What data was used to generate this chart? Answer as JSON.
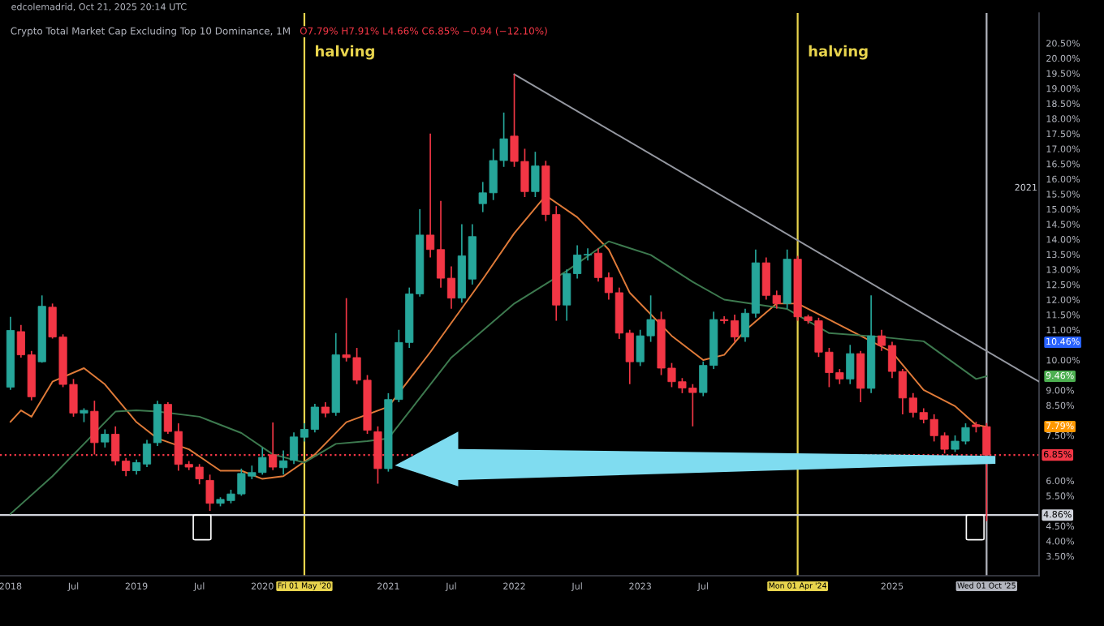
{
  "chart_data": {
    "type": "candlestick",
    "title": "Crypto Total Market Cap Excluding Top 10 Dominance, 1M",
    "subtitle": "O7.79% H7.91% L4.66% C6.85% −0.94 (−12.10%)",
    "x": [
      "2018-01",
      "2018-02",
      "2018-03",
      "2018-04",
      "2018-05",
      "2018-06",
      "2018-07",
      "2018-08",
      "2018-09",
      "2018-10",
      "2018-11",
      "2018-12",
      "2019-01",
      "2019-02",
      "2019-03",
      "2019-04",
      "2019-05",
      "2019-06",
      "2019-07",
      "2019-08",
      "2019-09",
      "2019-10",
      "2019-11",
      "2019-12",
      "2020-01",
      "2020-02",
      "2020-03",
      "2020-04",
      "2020-05",
      "2020-06",
      "2020-07",
      "2020-08",
      "2020-09",
      "2020-10",
      "2020-11",
      "2020-12",
      "2021-01",
      "2021-02",
      "2021-03",
      "2021-04",
      "2021-05",
      "2021-06",
      "2021-07",
      "2021-08",
      "2021-09",
      "2021-10",
      "2021-11",
      "2021-12",
      "2022-01",
      "2022-02",
      "2022-03",
      "2022-04",
      "2022-05",
      "2022-06",
      "2022-07",
      "2022-08",
      "2022-09",
      "2022-10",
      "2022-11",
      "2022-12",
      "2023-01",
      "2023-02",
      "2023-03",
      "2023-04",
      "2023-05",
      "2023-06",
      "2023-07",
      "2023-08",
      "2023-09",
      "2023-10",
      "2023-11",
      "2023-12",
      "2024-01",
      "2024-02",
      "2024-03",
      "2024-04",
      "2024-05",
      "2024-06",
      "2024-07",
      "2024-08",
      "2024-09",
      "2024-10",
      "2024-11",
      "2024-12",
      "2025-01",
      "2025-02",
      "2025-03",
      "2025-04",
      "2025-05",
      "2025-06",
      "2025-07",
      "2025-08",
      "2025-09",
      "2025-10"
    ],
    "ohlc": [
      [
        9.1,
        11.43,
        9.01,
        10.98
      ],
      [
        10.94,
        11.16,
        10.08,
        10.17
      ],
      [
        10.17,
        10.3,
        8.66,
        8.78
      ],
      [
        9.94,
        12.14,
        9.91,
        11.78
      ],
      [
        11.75,
        11.87,
        10.71,
        10.76
      ],
      [
        10.76,
        10.85,
        9.1,
        9.19
      ],
      [
        9.19,
        9.37,
        8.12,
        8.24
      ],
      [
        8.24,
        8.4,
        7.94,
        8.33
      ],
      [
        8.3,
        8.65,
        6.87,
        7.26
      ],
      [
        7.28,
        7.7,
        7.1,
        7.54
      ],
      [
        7.54,
        7.8,
        6.51,
        6.65
      ],
      [
        6.65,
        6.75,
        6.15,
        6.33
      ],
      [
        6.33,
        6.7,
        6.2,
        6.6
      ],
      [
        6.55,
        7.35,
        6.45,
        7.22
      ],
      [
        7.26,
        8.65,
        7.15,
        8.53
      ],
      [
        8.53,
        8.6,
        7.55,
        7.63
      ],
      [
        7.63,
        7.9,
        6.33,
        6.54
      ],
      [
        6.54,
        6.65,
        6.35,
        6.45
      ],
      [
        6.45,
        6.55,
        5.88,
        6.06
      ],
      [
        6.01,
        6.2,
        5.0,
        5.25
      ],
      [
        5.25,
        5.45,
        5.15,
        5.38
      ],
      [
        5.34,
        5.7,
        5.25,
        5.56
      ],
      [
        5.56,
        6.4,
        5.5,
        6.24
      ],
      [
        6.15,
        6.5,
        6.05,
        6.27
      ],
      [
        6.27,
        7.1,
        6.2,
        6.77
      ],
      [
        6.86,
        7.93,
        6.35,
        6.45
      ],
      [
        6.43,
        7.0,
        6.2,
        6.66
      ],
      [
        6.68,
        7.6,
        6.55,
        7.45
      ],
      [
        7.44,
        7.9,
        7.3,
        7.7
      ],
      [
        7.7,
        8.55,
        7.6,
        8.44
      ],
      [
        8.44,
        8.6,
        8.1,
        8.24
      ],
      [
        8.26,
        10.89,
        8.15,
        10.17
      ],
      [
        10.17,
        12.05,
        9.95,
        10.08
      ],
      [
        10.08,
        10.4,
        9.2,
        9.33
      ],
      [
        9.33,
        9.5,
        7.55,
        7.67
      ],
      [
        7.62,
        7.8,
        5.9,
        6.4
      ],
      [
        6.4,
        8.9,
        6.3,
        8.69
      ],
      [
        8.69,
        11.0,
        8.6,
        10.58
      ],
      [
        10.58,
        12.4,
        10.4,
        12.19
      ],
      [
        12.19,
        15.0,
        12.1,
        14.14
      ],
      [
        14.14,
        17.5,
        13.4,
        13.66
      ],
      [
        13.66,
        15.27,
        12.4,
        12.71
      ],
      [
        12.71,
        13.1,
        11.7,
        12.05
      ],
      [
        12.05,
        14.5,
        11.9,
        13.45
      ],
      [
        12.68,
        14.5,
        12.5,
        14.09
      ],
      [
        15.18,
        15.9,
        14.9,
        15.54
      ],
      [
        15.54,
        17.0,
        15.3,
        16.61
      ],
      [
        16.61,
        18.2,
        16.4,
        17.33
      ],
      [
        17.42,
        19.47,
        16.4,
        16.58
      ],
      [
        16.58,
        17.0,
        15.4,
        15.58
      ],
      [
        15.58,
        16.9,
        15.4,
        16.43
      ],
      [
        16.43,
        16.6,
        14.6,
        14.82
      ],
      [
        14.82,
        15.1,
        11.3,
        11.82
      ],
      [
        11.82,
        13.0,
        11.3,
        12.86
      ],
      [
        12.86,
        13.8,
        12.7,
        13.48
      ],
      [
        13.48,
        13.7,
        13.3,
        13.5
      ],
      [
        13.54,
        13.7,
        12.6,
        12.73
      ],
      [
        12.73,
        12.9,
        12.0,
        12.23
      ],
      [
        12.23,
        12.4,
        10.7,
        10.89
      ],
      [
        10.89,
        11.0,
        9.2,
        9.94
      ],
      [
        9.94,
        11.0,
        9.8,
        10.8
      ],
      [
        10.8,
        12.14,
        10.6,
        11.34
      ],
      [
        11.34,
        11.6,
        9.5,
        9.73
      ],
      [
        9.73,
        9.9,
        9.1,
        9.28
      ],
      [
        9.28,
        9.4,
        8.9,
        9.07
      ],
      [
        9.07,
        9.2,
        7.8,
        8.92
      ],
      [
        8.92,
        9.95,
        8.8,
        9.82
      ],
      [
        9.82,
        11.6,
        9.7,
        11.34
      ],
      [
        11.34,
        11.45,
        11.2,
        11.3
      ],
      [
        11.3,
        11.5,
        10.6,
        10.76
      ],
      [
        10.76,
        11.7,
        10.6,
        11.55
      ],
      [
        11.55,
        13.66,
        11.4,
        13.22
      ],
      [
        13.22,
        13.4,
        12.0,
        12.14
      ],
      [
        12.14,
        12.3,
        11.7,
        11.87
      ],
      [
        11.87,
        13.66,
        11.7,
        13.34
      ],
      [
        13.34,
        13.45,
        11.3,
        11.43
      ],
      [
        11.43,
        11.5,
        11.2,
        11.3
      ],
      [
        11.3,
        11.4,
        10.1,
        10.26
      ],
      [
        10.26,
        10.4,
        9.1,
        9.58
      ],
      [
        9.58,
        9.7,
        9.2,
        9.37
      ],
      [
        9.37,
        10.5,
        9.2,
        10.21
      ],
      [
        10.21,
        10.3,
        8.6,
        9.06
      ],
      [
        9.06,
        12.14,
        8.9,
        10.8
      ],
      [
        10.8,
        11.0,
        10.3,
        10.48
      ],
      [
        10.48,
        10.6,
        9.4,
        9.62
      ],
      [
        9.62,
        9.7,
        8.2,
        8.74
      ],
      [
        8.74,
        8.9,
        8.1,
        8.26
      ],
      [
        8.26,
        8.4,
        7.9,
        8.03
      ],
      [
        8.03,
        8.2,
        7.3,
        7.49
      ],
      [
        7.49,
        7.6,
        6.9,
        7.04
      ],
      [
        7.04,
        7.5,
        6.95,
        7.31
      ],
      [
        7.31,
        7.9,
        7.2,
        7.76
      ],
      [
        7.85,
        7.95,
        7.6,
        7.79
      ],
      [
        7.79,
        7.91,
        4.66,
        6.85
      ]
    ],
    "colors": [
      "#26a69a",
      "#f23645",
      "#f23645",
      "#26a69a",
      "#f23645",
      "#f23645",
      "#f23645",
      "#26a69a",
      "#f23645",
      "#26a69a",
      "#f23645",
      "#f23645",
      "#26a69a",
      "#26a69a",
      "#26a69a",
      "#f23645",
      "#f23645",
      "#f23645",
      "#f23645",
      "#f23645",
      "#26a69a",
      "#26a69a",
      "#26a69a",
      "#26a69a",
      "#26a69a",
      "#f23645",
      "#26a69a",
      "#26a69a",
      "#26a69a",
      "#26a69a",
      "#f23645",
      "#26a69a",
      "#f23645",
      "#f23645",
      "#f23645",
      "#f23645",
      "#26a69a",
      "#26a69a",
      "#26a69a",
      "#26a69a",
      "#f23645",
      "#f23645",
      "#f23645",
      "#26a69a",
      "#26a69a",
      "#26a69a",
      "#26a69a",
      "#26a69a",
      "#f23645",
      "#f23645",
      "#26a69a",
      "#f23645",
      "#f23645",
      "#26a69a",
      "#26a69a",
      "#26a69a",
      "#f23645",
      "#f23645",
      "#f23645",
      "#f23645",
      "#26a69a",
      "#26a69a",
      "#f23645",
      "#f23645",
      "#f23645",
      "#f23645",
      "#26a69a",
      "#26a69a",
      "#f23645",
      "#f23645",
      "#26a69a",
      "#26a69a",
      "#f23645",
      "#f23645",
      "#26a69a",
      "#f23645",
      "#f23645",
      "#f23645",
      "#f23645",
      "#f23645",
      "#26a69a",
      "#f23645",
      "#26a69a",
      "#f23645",
      "#f23645",
      "#f23645",
      "#f23645",
      "#f23645",
      "#f23645",
      "#f23645",
      "#26a69a",
      "#26a69a",
      "#f23645",
      "#f23645"
    ],
    "series": [
      {
        "type": "line",
        "color": "#e07b39",
        "x": [
          "2018-01",
          "2018-02",
          "2018-03",
          "2018-05",
          "2018-08",
          "2018-10",
          "2019-01",
          "2019-03",
          "2019-06",
          "2019-09",
          "2019-11",
          "2020-01",
          "2020-03",
          "2020-06",
          "2020-09",
          "2021-01",
          "2021-05",
          "2021-10",
          "2022-01",
          "2022-04",
          "2022-07",
          "2022-10",
          "2022-12",
          "2023-04",
          "2023-07",
          "2023-09",
          "2023-11",
          "2024-02",
          "2024-04",
          "2024-07",
          "2024-10",
          "2025-01",
          "2025-04",
          "2025-07",
          "2025-09",
          "2025-10"
        ],
        "values": [
          7.95,
          8.33,
          8.12,
          9.28,
          9.73,
          9.19,
          7.94,
          7.4,
          7.04,
          6.33,
          6.33,
          6.06,
          6.15,
          6.87,
          7.94,
          8.45,
          10.26,
          12.68,
          14.2,
          15.45,
          14.73,
          13.66,
          12.23,
          10.8,
          10.0,
          10.17,
          10.98,
          11.87,
          11.87,
          11.34,
          10.8,
          10.26,
          9.01,
          8.47,
          7.85,
          7.79
        ]
      },
      {
        "type": "line",
        "color": "#3d7a4f",
        "x": [
          "2018-01",
          "2018-05",
          "2018-08",
          "2018-11",
          "2019-01",
          "2019-03",
          "2019-07",
          "2019-11",
          "2020-02",
          "2020-05",
          "2020-08",
          "2020-11",
          "2021-01",
          "2021-07",
          "2022-01",
          "2022-06",
          "2022-10",
          "2023-02",
          "2023-06",
          "2023-09",
          "2024-03",
          "2024-07",
          "2024-12",
          "2025-04",
          "2025-09",
          "2025-10"
        ],
        "values": [
          4.9,
          6.15,
          7.22,
          8.29,
          8.33,
          8.29,
          8.12,
          7.58,
          6.87,
          6.6,
          7.22,
          7.31,
          7.4,
          10.08,
          11.87,
          12.95,
          13.93,
          13.48,
          12.59,
          12.0,
          11.69,
          10.89,
          10.76,
          10.62,
          9.37,
          9.46
        ]
      },
      {
        "type": "line",
        "color": "#9598a1",
        "x": [
          "2022-01",
          "2026-03"
        ],
        "values": [
          19.47,
          9.28
        ]
      }
    ],
    "xlim": [
      "2017-12",
      "2026-03"
    ],
    "xticks": [
      {
        "value": "2018-01",
        "label": "2018"
      },
      {
        "value": "2018-07",
        "label": "Jul"
      },
      {
        "value": "2019-01",
        "label": "2019"
      },
      {
        "value": "2019-07",
        "label": "Jul"
      },
      {
        "value": "2020-01",
        "label": "2020"
      },
      {
        "value": "2020-05",
        "label": "Fri 01 May '20"
      },
      {
        "value": "2021-01",
        "label": "2021"
      },
      {
        "value": "2021-07",
        "label": "Jul"
      },
      {
        "value": "2022-01",
        "label": "2022"
      },
      {
        "value": "2022-07",
        "label": "Jul"
      },
      {
        "value": "2023-01",
        "label": "2023"
      },
      {
        "value": "2023-07",
        "label": "Jul"
      },
      {
        "value": "2024-04",
        "label": "Mon 01 Apr '24"
      },
      {
        "value": "2025-01",
        "label": "2025"
      },
      {
        "value": "2025-10",
        "label": "Wed 01 Oct '25"
      }
    ],
    "ylim": [
      2.85,
      21.5
    ],
    "yticks": [
      {
        "value": 3.5,
        "label": "3.50%"
      },
      {
        "value": 4.0,
        "label": "4.00%"
      },
      {
        "value": 4.5,
        "label": "4.50%"
      },
      {
        "value": 5.5,
        "label": "5.50%"
      },
      {
        "value": 6.0,
        "label": "6.00%"
      },
      {
        "value": 7.5,
        "label": "7.50%"
      },
      {
        "value": 8.5,
        "label": "8.50%"
      },
      {
        "value": 9.0,
        "label": "9.00%"
      },
      {
        "value": 10.0,
        "label": "10.00%"
      },
      {
        "value": 11.0,
        "label": "11.00%"
      },
      {
        "value": 11.5,
        "label": "11.50%"
      },
      {
        "value": 12.0,
        "label": "12.00%"
      },
      {
        "value": 12.5,
        "label": "12.50%"
      },
      {
        "value": 13.0,
        "label": "13.00%"
      },
      {
        "value": 13.5,
        "label": "13.50%"
      },
      {
        "value": 14.0,
        "label": "14.00%"
      },
      {
        "value": 14.5,
        "label": "14.50%"
      },
      {
        "value": 15.0,
        "label": "15.00%"
      },
      {
        "value": 15.5,
        "label": "15.50%"
      },
      {
        "value": 16.0,
        "label": "16.00%"
      },
      {
        "value": 16.5,
        "label": "16.50%"
      },
      {
        "value": 17.0,
        "label": "17.00%"
      },
      {
        "value": 17.5,
        "label": "17.50%"
      },
      {
        "value": 18.0,
        "label": "18.00%"
      },
      {
        "value": 18.5,
        "label": "18.50%"
      },
      {
        "value": 19.0,
        "label": "19.00%"
      },
      {
        "value": 19.5,
        "label": "19.50%"
      },
      {
        "value": 20.0,
        "label": "20.00%"
      },
      {
        "value": 20.5,
        "label": "20.50%"
      }
    ],
    "ref_lines": [
      {
        "axis": "x",
        "value": "2020-05",
        "label": "halving",
        "color": "#e8d44d"
      },
      {
        "axis": "x",
        "value": "2024-04",
        "label": "halving",
        "color": "#e8d44d"
      },
      {
        "axis": "x",
        "value": "2025-10",
        "color": "#b2b5be"
      },
      {
        "axis": "y",
        "value": 6.85,
        "label": "6.85%",
        "color": "#f23645",
        "line_style": "dotted"
      },
      {
        "axis": "y",
        "value": 4.86,
        "label": "4.86%",
        "color": "#d1d4dc"
      }
    ],
    "annotations": [
      "edcolemadrid, Oct 21, 2025 20:14 UTC",
      "10.46%",
      "9.46%",
      "7.79%",
      "2021"
    ]
  }
}
